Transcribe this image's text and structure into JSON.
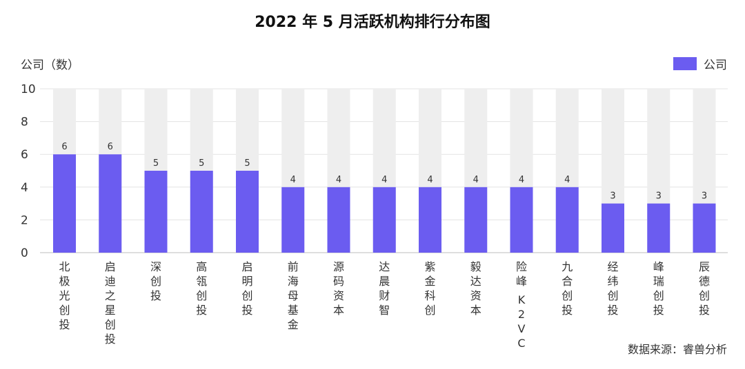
{
  "chart_data": {
    "type": "bar",
    "title": "2022 年 5 月活跃机构排行分布图",
    "ylabel": "公司（数）",
    "ylim": [
      0,
      10
    ],
    "yticks": [
      0,
      2,
      4,
      6,
      8,
      10
    ],
    "grid": true,
    "legend_position": "top-right",
    "categories": [
      "北极光创投",
      "启迪之星创投",
      "深创投",
      "高瓴创投",
      "启明创投",
      "前海母基金",
      "源码资本",
      "达晨财智",
      "紫金科创",
      "毅达资本",
      "险峰 K2VC",
      "九合创投",
      "经纬创投",
      "峰瑞创投",
      "辰德创投"
    ],
    "series": [
      {
        "name": "公司",
        "values": [
          6,
          6,
          5,
          5,
          5,
          4,
          4,
          4,
          4,
          4,
          4,
          4,
          3,
          3,
          3
        ]
      }
    ],
    "colors": {
      "bar": "#6b5cf0",
      "track": "#eeeeee",
      "grid": "#e3e3e3"
    }
  },
  "source": "数据来源：睿兽分析"
}
